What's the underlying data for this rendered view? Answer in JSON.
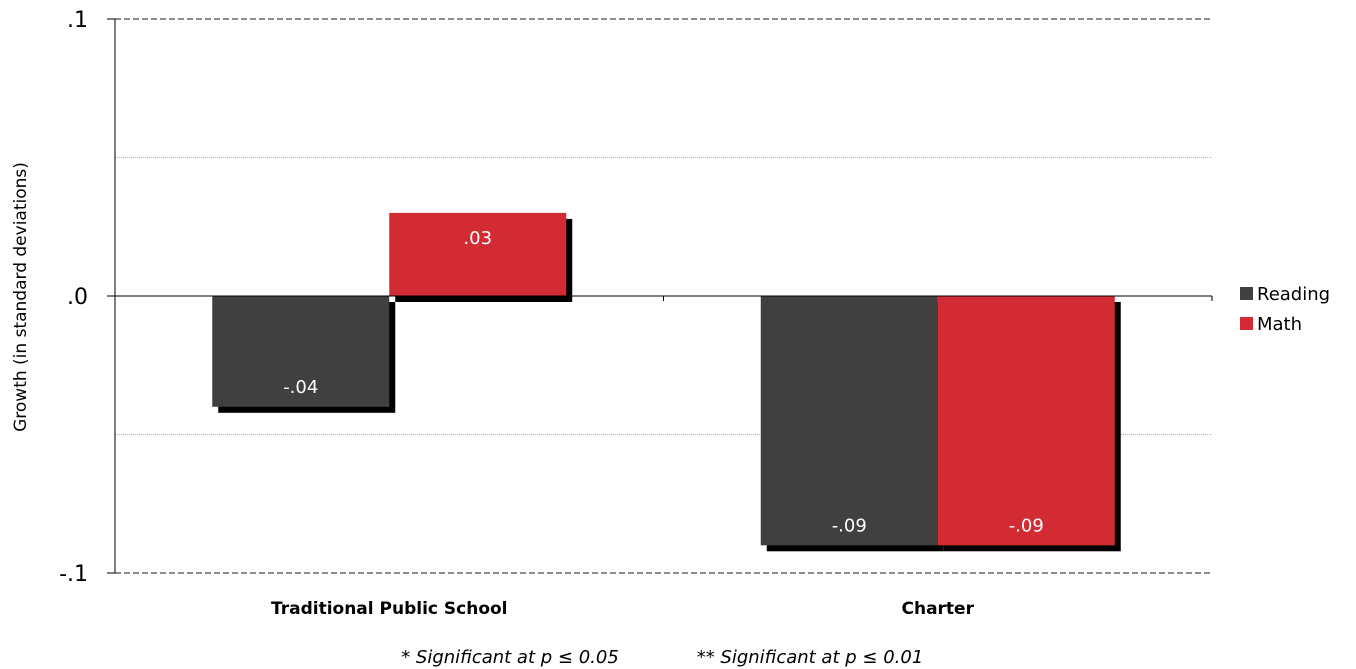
{
  "chart_data": {
    "type": "bar",
    "categories": [
      "Traditional Public School",
      "Charter"
    ],
    "series": [
      {
        "name": "Reading",
        "values": [
          -0.04,
          -0.09
        ],
        "labels": [
          "-.04",
          "-.09"
        ],
        "color": "#404040"
      },
      {
        "name": "Math",
        "values": [
          0.03,
          -0.09
        ],
        "labels": [
          ".03",
          "-.09"
        ],
        "color": "#d22b33"
      }
    ],
    "ylabel": "Growth (in standard deviations)",
    "xlabel": "",
    "ylim": [
      -0.1,
      0.1
    ],
    "yticks": [
      {
        "value": 0.1,
        "label": ".1"
      },
      {
        "value": 0.0,
        "label": ".0"
      },
      {
        "value": -0.1,
        "label": "-.1"
      }
    ],
    "grid": true,
    "legend_position": "right",
    "notes": [
      "* Significant at p ≤ 0.05",
      "** Significant at p ≤ 0.01"
    ]
  }
}
